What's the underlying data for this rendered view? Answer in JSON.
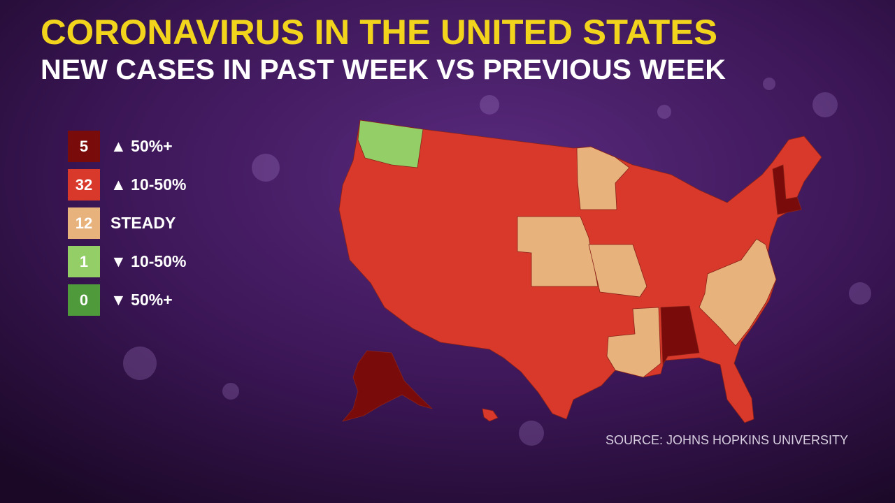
{
  "header": {
    "title": "CORONAVIRUS IN THE UNITED STATES",
    "subtitle": "NEW CASES IN PAST WEEK VS PREVIOUS WEEK"
  },
  "legend": [
    {
      "count": "5",
      "label": "▲ 50%+",
      "color": "#7a0b0b"
    },
    {
      "count": "32",
      "label": "▲ 10-50%",
      "color": "#d8392a"
    },
    {
      "count": "12",
      "label": "STEADY",
      "color": "#e7b27c"
    },
    {
      "count": "1",
      "label": "▼ 10-50%",
      "color": "#93cf66"
    },
    {
      "count": "0",
      "label": "▼ 50%+",
      "color": "#4f9a3b"
    }
  ],
  "source": "SOURCE: JOHNS HOPKINS UNIVERSITY"
}
